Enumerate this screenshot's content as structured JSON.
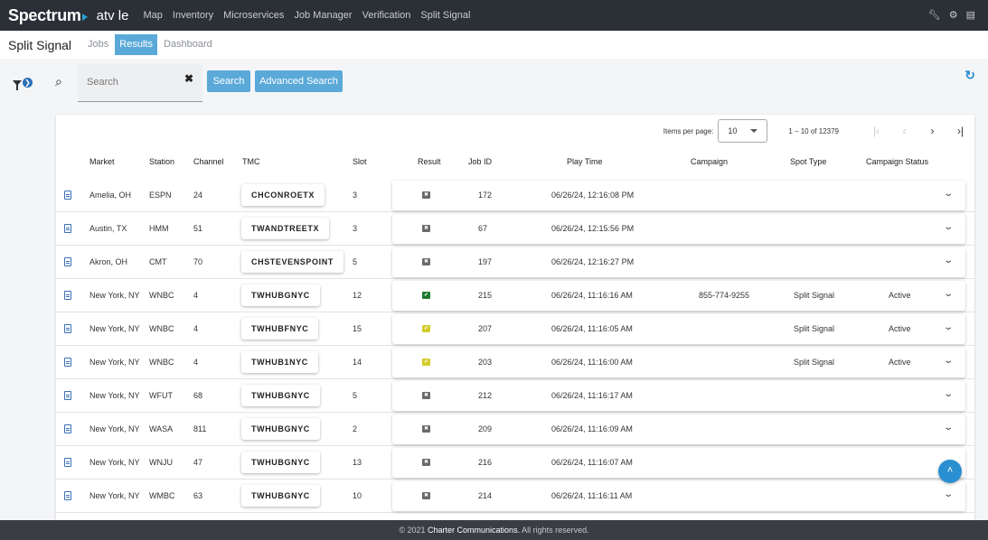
{
  "app": {
    "brand": "Spectrum",
    "name": "atv le",
    "nav": [
      "Map",
      "Inventory",
      "Microservices",
      "Job Manager",
      "Verification",
      "Split Signal"
    ]
  },
  "page": {
    "title": "Split Signal",
    "tabs": [
      "Jobs",
      "Results",
      "Dashboard"
    ],
    "active_tab": "Results"
  },
  "search": {
    "placeholder": "Search",
    "search_button": "Search",
    "advanced_button": "Advanced Search"
  },
  "paginator": {
    "items_per_page_label": "Items per page:",
    "items_per_page": "10",
    "range": "1 – 10 of 12379"
  },
  "columns": [
    "Market",
    "Station",
    "Channel",
    "TMC",
    "Slot",
    "Result",
    "Job ID",
    "Play Time",
    "Campaign",
    "Spot Type",
    "Campaign Status"
  ],
  "rows": [
    {
      "market": "Amelia, OH",
      "station": "ESPN",
      "channel": "24",
      "tmc": "CHCONROETX",
      "slot": "3",
      "result": "fail",
      "job_id": "172",
      "play_time": "06/26/24, 12:16:08 PM",
      "campaign": "",
      "spot_type": "",
      "status": ""
    },
    {
      "market": "Austin, TX",
      "station": "HMM",
      "channel": "51",
      "tmc": "TWANDTREETX",
      "slot": "3",
      "result": "fail",
      "job_id": "67",
      "play_time": "06/26/24, 12:15:56 PM",
      "campaign": "",
      "spot_type": "",
      "status": ""
    },
    {
      "market": "Akron, OH",
      "station": "CMT",
      "channel": "70",
      "tmc": "CHSTEVENSPOINT",
      "slot": "5",
      "result": "fail",
      "job_id": "197",
      "play_time": "06/26/24, 12:16:27 PM",
      "campaign": "",
      "spot_type": "",
      "status": ""
    },
    {
      "market": "New York, NY",
      "station": "WNBC",
      "channel": "4",
      "tmc": "TWHUBGNYC",
      "slot": "12",
      "result": "pass",
      "job_id": "215",
      "play_time": "06/26/24, 11:16:16 AM",
      "campaign": "855-774-9255",
      "spot_type": "Split Signal",
      "status": "Active"
    },
    {
      "market": "New York, NY",
      "station": "WNBC",
      "channel": "4",
      "tmc": "TWHUBFNYC",
      "slot": "15",
      "result": "warn",
      "job_id": "207",
      "play_time": "06/26/24, 11:16:05 AM",
      "campaign": "",
      "spot_type": "Split Signal",
      "status": "Active"
    },
    {
      "market": "New York, NY",
      "station": "WNBC",
      "channel": "4",
      "tmc": "TWHUB1NYC",
      "slot": "14",
      "result": "warn",
      "job_id": "203",
      "play_time": "06/26/24, 11:16:00 AM",
      "campaign": "",
      "spot_type": "Split Signal",
      "status": "Active"
    },
    {
      "market": "New York, NY",
      "station": "WFUT",
      "channel": "68",
      "tmc": "TWHUBGNYC",
      "slot": "5",
      "result": "fail",
      "job_id": "212",
      "play_time": "06/26/24, 11:16:17 AM",
      "campaign": "",
      "spot_type": "",
      "status": ""
    },
    {
      "market": "New York, NY",
      "station": "WASA",
      "channel": "811",
      "tmc": "TWHUBGNYC",
      "slot": "2",
      "result": "fail",
      "job_id": "209",
      "play_time": "06/26/24, 11:16:09 AM",
      "campaign": "",
      "spot_type": "",
      "status": ""
    },
    {
      "market": "New York, NY",
      "station": "WNJU",
      "channel": "47",
      "tmc": "TWHUBGNYC",
      "slot": "13",
      "result": "fail",
      "job_id": "216",
      "play_time": "06/26/24, 11:16:07 AM",
      "campaign": "",
      "spot_type": "",
      "status": ""
    },
    {
      "market": "New York, NY",
      "station": "WMBC",
      "channel": "63",
      "tmc": "TWHUBGNYC",
      "slot": "10",
      "result": "fail",
      "job_id": "214",
      "play_time": "06/26/24, 11:16:11 AM",
      "campaign": "",
      "spot_type": "",
      "status": ""
    }
  ],
  "colors": {
    "accent": "#5aa9d9",
    "topbar": "#2b2f36",
    "pass": "#1e7a2e",
    "warn": "#d4cc2a",
    "fail": "#6a6a6a"
  },
  "footer": {
    "copyright": "© 2021",
    "company": "Charter Communications.",
    "rights": "All rights reserved."
  }
}
